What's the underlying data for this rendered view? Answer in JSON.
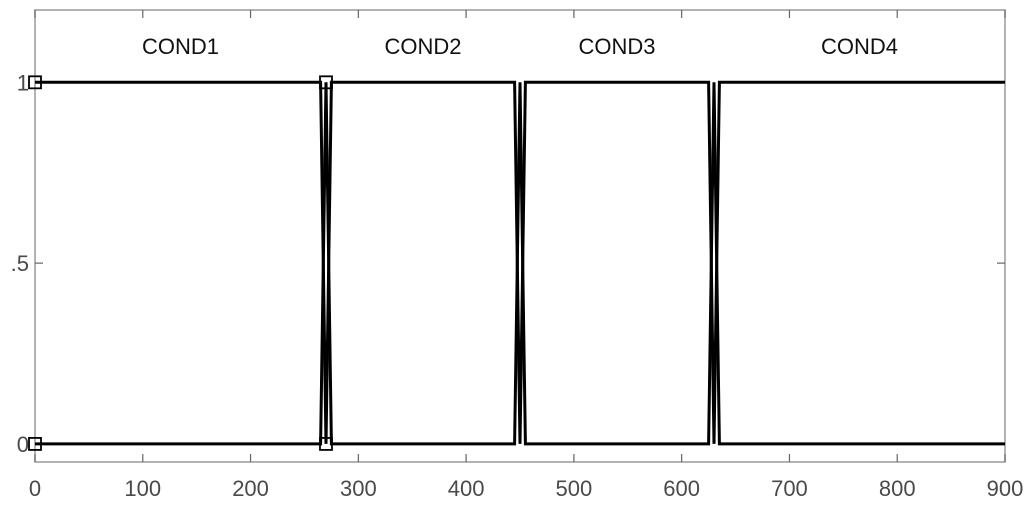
{
  "chart_data": {
    "type": "line",
    "title": "",
    "xlabel": "",
    "ylabel": "",
    "xlim": [
      0,
      900
    ],
    "ylim": [
      -0.05,
      1.2
    ],
    "x_ticks": [
      "0",
      "100",
      "200",
      "300",
      "400",
      "500",
      "600",
      "700",
      "800",
      "900"
    ],
    "y_ticks": [
      "0",
      ".5",
      "1"
    ],
    "grid": false,
    "line_color": "#000000",
    "series": [
      {
        "x": [
          0,
          265,
          270,
          275,
          445,
          450,
          455,
          625,
          630,
          635,
          900
        ],
        "y": [
          0,
          0,
          1,
          0,
          0,
          1,
          0,
          0,
          1,
          0,
          0
        ]
      },
      {
        "x": [
          0,
          265,
          270,
          275,
          445,
          450,
          455,
          625,
          630,
          635,
          900
        ],
        "y": [
          1,
          1,
          0,
          1,
          1,
          0,
          1,
          1,
          0,
          1,
          1
        ]
      }
    ],
    "markers": [
      {
        "x": 0,
        "y": 1
      },
      {
        "x": 0,
        "y": 0
      },
      {
        "x": 270,
        "y": 1
      },
      {
        "x": 270,
        "y": 0
      }
    ],
    "annotations": [
      {
        "text": "COND1",
        "x": 135,
        "y": 1.1
      },
      {
        "text": "COND2",
        "x": 360,
        "y": 1.1
      },
      {
        "text": "COND3",
        "x": 540,
        "y": 1.1
      },
      {
        "text": "COND4",
        "x": 765,
        "y": 1.1
      }
    ]
  }
}
